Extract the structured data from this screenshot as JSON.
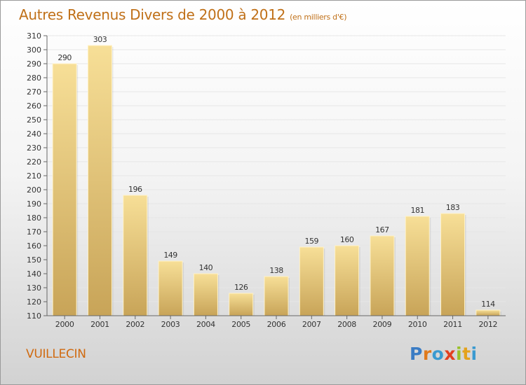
{
  "title": {
    "main": "Autres Revenus Divers de 2000 à 2012",
    "sub": "(en milliers d'€)"
  },
  "commune": "VUILLECIN",
  "logo": {
    "text": "Proxiti",
    "letters": [
      {
        "ch": "P",
        "color": "#3a7cc4"
      },
      {
        "ch": "r",
        "color": "#e07a1c"
      },
      {
        "ch": "o",
        "color": "#3a9ad0"
      },
      {
        "ch": "x",
        "color": "#e24020"
      },
      {
        "ch": "i",
        "color": "#9ac12a"
      },
      {
        "ch": "t",
        "color": "#e4a21c"
      },
      {
        "ch": "i",
        "color": "#3a9ad0"
      }
    ]
  },
  "colors": {
    "title": "#c07018",
    "bar_top": "#f7df97",
    "bar_bottom": "#c8a458",
    "axis": "#666666",
    "grid": "#e6e6e6"
  },
  "chart_data": {
    "type": "bar",
    "categories": [
      "2000",
      "2001",
      "2002",
      "2003",
      "2004",
      "2005",
      "2006",
      "2007",
      "2008",
      "2009",
      "2010",
      "2011",
      "2012"
    ],
    "values": [
      290,
      303,
      196,
      149,
      140,
      126,
      138,
      159,
      160,
      167,
      181,
      183,
      114
    ],
    "ylim": [
      110,
      310
    ],
    "yticks": [
      110,
      120,
      130,
      140,
      150,
      160,
      170,
      180,
      190,
      200,
      210,
      220,
      230,
      240,
      250,
      260,
      270,
      280,
      290,
      300,
      310
    ],
    "title": "Autres Revenus Divers de 2000 à 2012",
    "xlabel": "",
    "ylabel": "",
    "grid": true,
    "data_labels": true
  }
}
